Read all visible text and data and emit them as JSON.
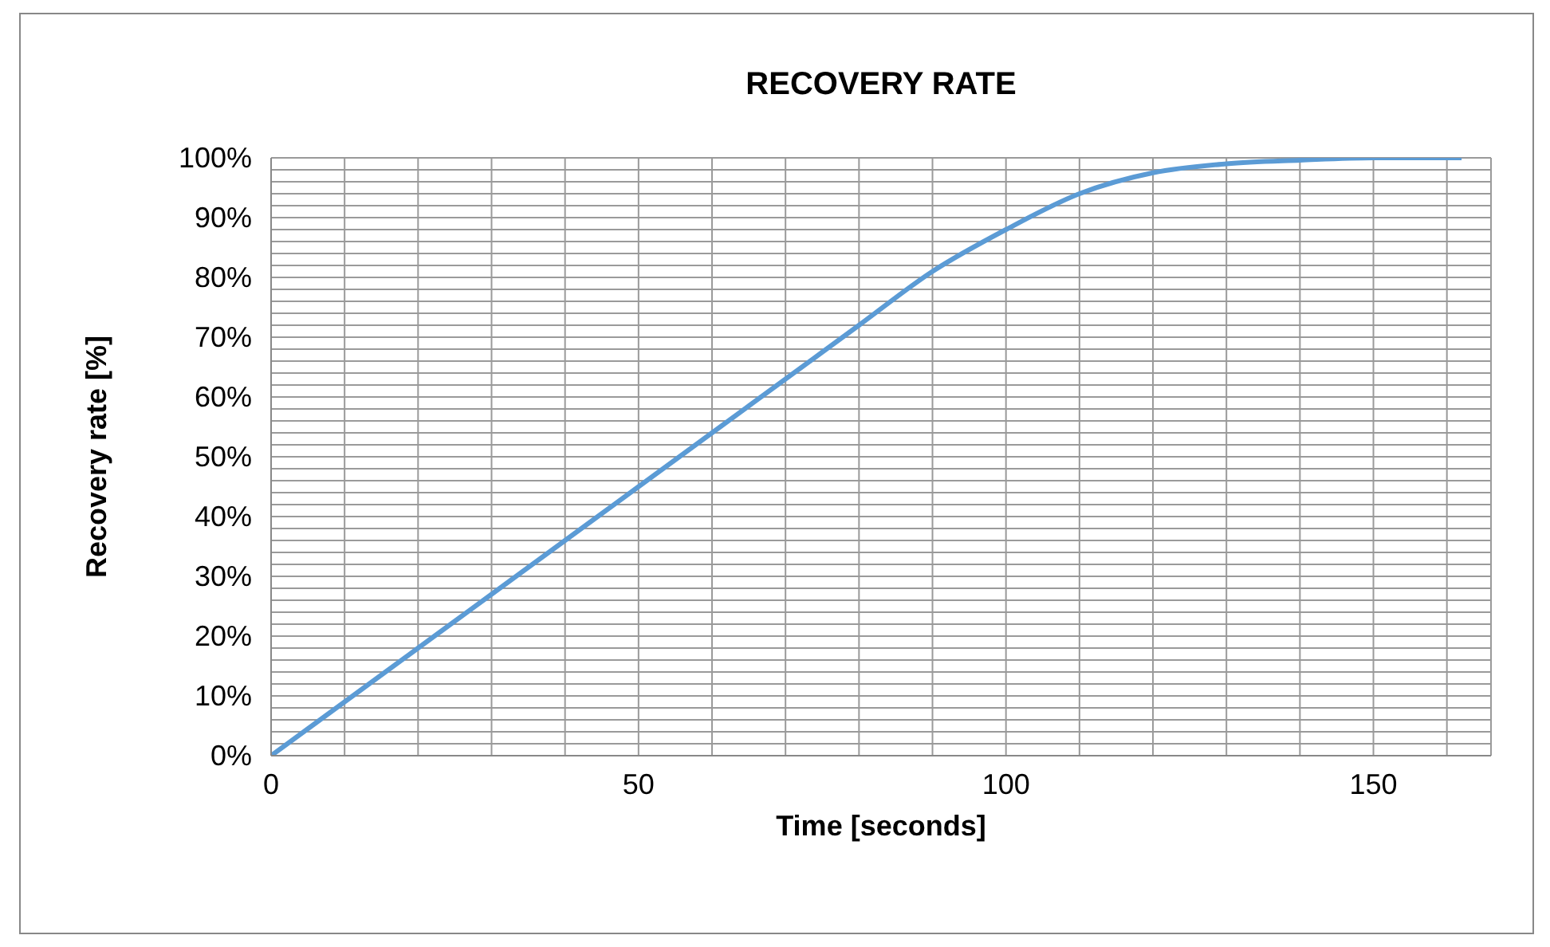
{
  "chart_data": {
    "type": "line",
    "title": "RECOVERY RATE",
    "xlabel": "Time [seconds]",
    "ylabel": "Recovery rate [%]",
    "x": [
      0,
      10,
      20,
      30,
      40,
      50,
      60,
      70,
      80,
      90,
      100,
      110,
      120,
      130,
      140,
      150,
      162
    ],
    "series": [
      {
        "color": "#5b9bd5",
        "values": [
          0,
          9,
          18,
          27,
          36,
          45,
          54,
          63,
          72,
          81,
          88,
          94,
          97.5,
          99,
          99.6,
          100,
          100
        ]
      }
    ],
    "xlim": [
      0,
      166
    ],
    "xticks": [
      0,
      {
        "value": 10,
        "label": null
      },
      {
        "value": 20,
        "label": null
      },
      {
        "value": 30,
        "label": null
      },
      {
        "value": 40,
        "label": null
      },
      50,
      {
        "value": 60,
        "label": null
      },
      {
        "value": 70,
        "label": null
      },
      {
        "value": 80,
        "label": null
      },
      {
        "value": 90,
        "label": null
      },
      100,
      {
        "value": 110,
        "label": null
      },
      {
        "value": 120,
        "label": null
      },
      {
        "value": 130,
        "label": null
      },
      {
        "value": 140,
        "label": null
      },
      150,
      {
        "value": 160,
        "label": null
      }
    ],
    "ylim": [
      0,
      100
    ],
    "yticks": [
      {
        "value": 0,
        "label": "0%"
      },
      {
        "value": 2,
        "label": null
      },
      {
        "value": 4,
        "label": null
      },
      {
        "value": 6,
        "label": null
      },
      {
        "value": 8,
        "label": null
      },
      {
        "value": 10,
        "label": "10%"
      },
      {
        "value": 12,
        "label": null
      },
      {
        "value": 14,
        "label": null
      },
      {
        "value": 16,
        "label": null
      },
      {
        "value": 18,
        "label": null
      },
      {
        "value": 20,
        "label": "20%"
      },
      {
        "value": 22,
        "label": null
      },
      {
        "value": 24,
        "label": null
      },
      {
        "value": 26,
        "label": null
      },
      {
        "value": 28,
        "label": null
      },
      {
        "value": 30,
        "label": "30%"
      },
      {
        "value": 32,
        "label": null
      },
      {
        "value": 34,
        "label": null
      },
      {
        "value": 36,
        "label": null
      },
      {
        "value": 38,
        "label": null
      },
      {
        "value": 40,
        "label": "40%"
      },
      {
        "value": 42,
        "label": null
      },
      {
        "value": 44,
        "label": null
      },
      {
        "value": 46,
        "label": null
      },
      {
        "value": 48,
        "label": null
      },
      {
        "value": 50,
        "label": "50%"
      },
      {
        "value": 52,
        "label": null
      },
      {
        "value": 54,
        "label": null
      },
      {
        "value": 56,
        "label": null
      },
      {
        "value": 58,
        "label": null
      },
      {
        "value": 60,
        "label": "60%"
      },
      {
        "value": 62,
        "label": null
      },
      {
        "value": 64,
        "label": null
      },
      {
        "value": 66,
        "label": null
      },
      {
        "value": 68,
        "label": null
      },
      {
        "value": 70,
        "label": "70%"
      },
      {
        "value": 72,
        "label": null
      },
      {
        "value": 74,
        "label": null
      },
      {
        "value": 76,
        "label": null
      },
      {
        "value": 78,
        "label": null
      },
      {
        "value": 80,
        "label": "80%"
      },
      {
        "value": 82,
        "label": null
      },
      {
        "value": 84,
        "label": null
      },
      {
        "value": 86,
        "label": null
      },
      {
        "value": 88,
        "label": null
      },
      {
        "value": 90,
        "label": "90%"
      },
      {
        "value": 92,
        "label": null
      },
      {
        "value": 94,
        "label": null
      },
      {
        "value": 96,
        "label": null
      },
      {
        "value": 98,
        "label": null
      },
      {
        "value": 100,
        "label": "100%"
      }
    ],
    "grid": true,
    "marker": "none",
    "line_style": "solid",
    "legend": false
  }
}
